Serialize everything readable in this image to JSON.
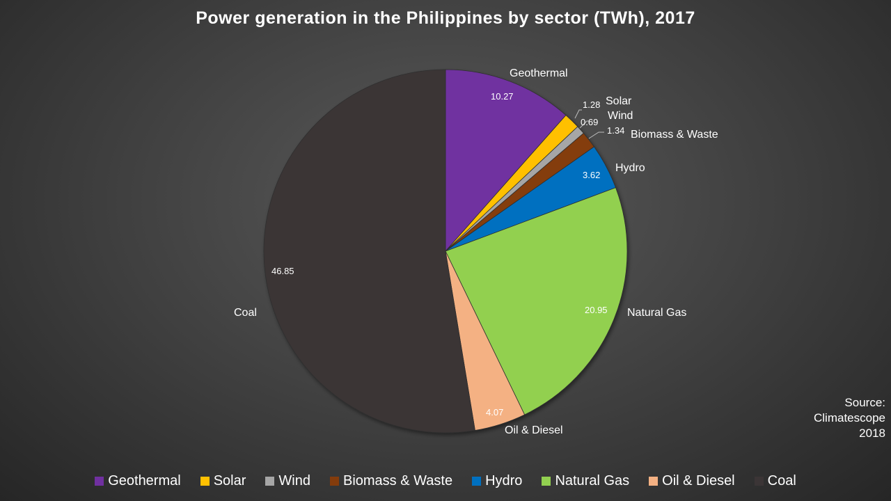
{
  "chart_data": {
    "type": "pie",
    "title": "Power generation in the Philippines  by sector (TWh), 2017",
    "categories": [
      "Geothermal",
      "Solar",
      "Wind",
      "Biomass & Waste",
      "Hydro",
      "Natural Gas",
      "Oil & Diesel",
      "Coal"
    ],
    "values": [
      10.27,
      1.28,
      0.69,
      1.34,
      3.62,
      20.95,
      4.07,
      46.85
    ],
    "value_labels": [
      "10.27",
      "1.28",
      "0.69",
      "1.34",
      "3.62",
      "20.95",
      "4.07",
      "46.85"
    ],
    "colors": [
      "#7030a0",
      "#ffc000",
      "#a6a6a6",
      "#843c0c",
      "#0070c0",
      "#92d050",
      "#f4b183",
      "#3b3536"
    ],
    "legend_placement": "bottom",
    "start_angle": "top, clockwise"
  },
  "source": {
    "line1": "Source:",
    "line2": "Climatescope",
    "line3": "2018"
  }
}
